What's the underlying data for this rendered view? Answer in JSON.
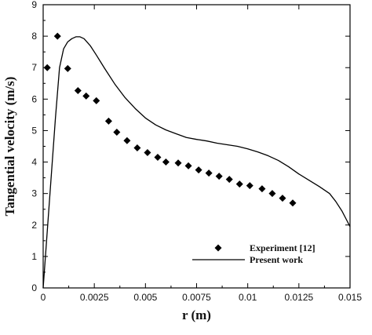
{
  "chart_data": {
    "type": "scatter",
    "title": "",
    "xlabel": "r (m)",
    "ylabel": "Tangential velocity (m/s)",
    "xlim": [
      0,
      0.015
    ],
    "ylim": [
      0,
      9
    ],
    "xticks": [
      0,
      0.0025,
      0.005,
      0.0075,
      0.01,
      0.0125,
      0.015
    ],
    "xtick_labels": [
      "0",
      "0.0025",
      "0.005",
      "0.0075",
      "0.01",
      "0.0125",
      "0.015"
    ],
    "yticks": [
      0,
      1,
      2,
      3,
      4,
      5,
      6,
      7,
      8,
      9
    ],
    "ytick_labels": [
      "0",
      "1",
      "2",
      "3",
      "4",
      "5",
      "6",
      "7",
      "8",
      "9"
    ],
    "grid": false,
    "legend_position": "bottom-right",
    "series": [
      {
        "name": "Experiment [12]",
        "style": "diamond-markers",
        "color": "#000000",
        "x": [
          0.0002,
          0.0007,
          0.0012,
          0.0017,
          0.0021,
          0.0026,
          0.0032,
          0.0036,
          0.0041,
          0.0046,
          0.0051,
          0.0056,
          0.006,
          0.0066,
          0.0071,
          0.0076,
          0.0081,
          0.0086,
          0.0091,
          0.0096,
          0.0101,
          0.0107,
          0.0112,
          0.0117,
          0.0122
        ],
        "y": [
          7.0,
          8.0,
          6.97,
          6.27,
          6.1,
          5.95,
          5.3,
          4.95,
          4.68,
          4.45,
          4.3,
          4.15,
          4.0,
          3.97,
          3.88,
          3.75,
          3.65,
          3.55,
          3.45,
          3.3,
          3.25,
          3.15,
          3.0,
          2.85,
          2.7
        ]
      },
      {
        "name": "Present work",
        "style": "solid-line",
        "color": "#000000",
        "x": [
          0,
          0.0002,
          0.0004,
          0.0006,
          0.0008,
          0.001,
          0.0012,
          0.0014,
          0.0016,
          0.0018,
          0.002,
          0.0023,
          0.0026,
          0.003,
          0.0035,
          0.004,
          0.0045,
          0.005,
          0.0055,
          0.006,
          0.0065,
          0.007,
          0.0075,
          0.008,
          0.0085,
          0.009,
          0.0095,
          0.01,
          0.0105,
          0.011,
          0.0115,
          0.012,
          0.0125,
          0.013,
          0.0135,
          0.014,
          0.0143,
          0.0146,
          0.0148,
          0.015
        ],
        "y": [
          0.0,
          1.8,
          3.6,
          5.4,
          7.0,
          7.6,
          7.82,
          7.92,
          7.98,
          7.98,
          7.92,
          7.7,
          7.4,
          6.98,
          6.48,
          6.05,
          5.7,
          5.4,
          5.18,
          5.02,
          4.9,
          4.78,
          4.72,
          4.67,
          4.6,
          4.55,
          4.5,
          4.42,
          4.32,
          4.2,
          4.05,
          3.85,
          3.62,
          3.42,
          3.22,
          3.0,
          2.75,
          2.45,
          2.2,
          1.95
        ]
      }
    ]
  }
}
